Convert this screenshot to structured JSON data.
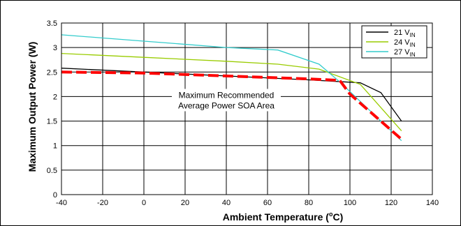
{
  "chart_data": {
    "type": "line",
    "xlabel": "Ambient Temperature (°C)",
    "xlabel_parts": {
      "main": "Ambient Temperature (",
      "sup": "o",
      "tail": "C)"
    },
    "ylabel": "Maximum Output Power (W)",
    "xlim": [
      -40,
      140
    ],
    "ylim": [
      0,
      3.5
    ],
    "xticks": [
      -40,
      -20,
      0,
      20,
      40,
      60,
      80,
      100,
      120,
      140
    ],
    "yticks": [
      0,
      0.5,
      1,
      1.5,
      2,
      2.5,
      3,
      3.5
    ],
    "ytick_labels": [
      "0",
      "0.5",
      "1",
      "1.5",
      "2",
      "2.5",
      "3",
      "3.5"
    ],
    "grid": true,
    "legend_position": "top-right",
    "series": [
      {
        "name": "21 VIN",
        "legend": {
          "main": "21 V",
          "sub": "IN"
        },
        "color": "#000000",
        "points": [
          [
            -40,
            2.58
          ],
          [
            0,
            2.5
          ],
          [
            40,
            2.42
          ],
          [
            80,
            2.34
          ],
          [
            105,
            2.28
          ],
          [
            115,
            2.08
          ],
          [
            125,
            1.5
          ]
        ]
      },
      {
        "name": "24 VIN",
        "legend": {
          "main": "24 V",
          "sub": "IN"
        },
        "color": "#99cc00",
        "points": [
          [
            -40,
            2.88
          ],
          [
            0,
            2.8
          ],
          [
            40,
            2.72
          ],
          [
            65,
            2.66
          ],
          [
            85,
            2.56
          ],
          [
            105,
            2.25
          ],
          [
            125,
            1.3
          ]
        ]
      },
      {
        "name": "27 VIN",
        "legend": {
          "main": "27 V",
          "sub": "IN"
        },
        "color": "#33cccc",
        "points": [
          [
            -40,
            3.26
          ],
          [
            0,
            3.13
          ],
          [
            40,
            3.0
          ],
          [
            65,
            2.95
          ],
          [
            85,
            2.66
          ],
          [
            95,
            2.3
          ],
          [
            125,
            1.1
          ]
        ]
      }
    ],
    "soa_curve": {
      "color": "#ff0000",
      "style": "dashed",
      "points": [
        [
          -40,
          2.5
        ],
        [
          0,
          2.48
        ],
        [
          40,
          2.42
        ],
        [
          80,
          2.36
        ],
        [
          95,
          2.33
        ],
        [
          100,
          2.05
        ],
        [
          125,
          1.13
        ]
      ]
    },
    "annotation": {
      "line1": "Maximum Recommended",
      "line2": "Average Power SOA Area",
      "x": 40,
      "y": 1.9
    }
  }
}
